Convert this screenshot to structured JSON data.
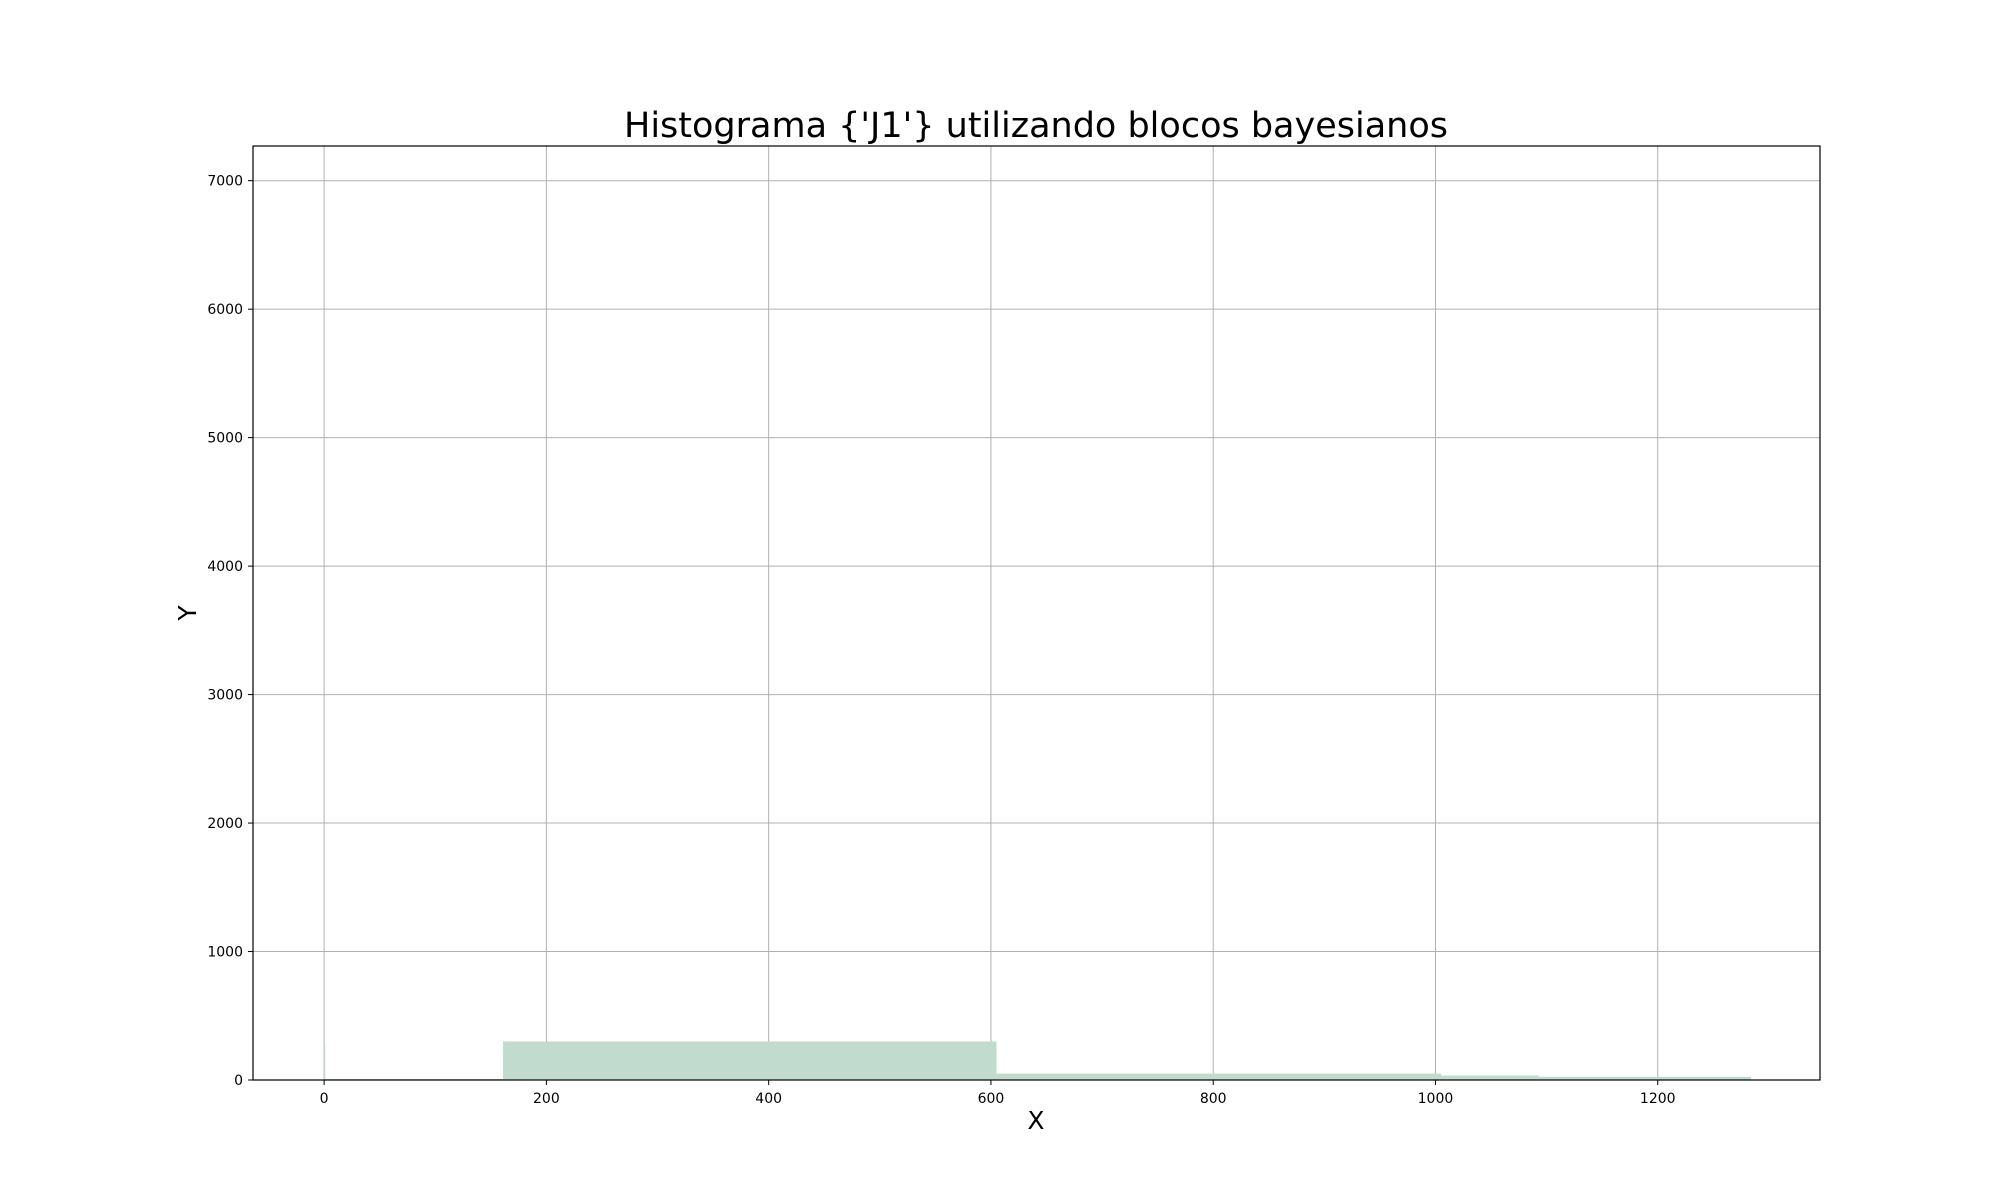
{
  "chart_data": {
    "type": "bar",
    "title": "Histograma {'J1'} utilizando blocos bayesianos",
    "xlabel": "X",
    "ylabel": "Y",
    "xlim": [
      -64,
      1346
    ],
    "ylim": [
      0,
      7270
    ],
    "xticks": [
      0,
      200,
      400,
      600,
      800,
      1000,
      1200
    ],
    "yticks": [
      0,
      1000,
      2000,
      3000,
      4000,
      5000,
      6000,
      7000
    ],
    "grid": true,
    "bar_color": "#c1dccf",
    "bins": [
      {
        "x0": 0,
        "x1": 1,
        "value": 280
      },
      {
        "x0": 1,
        "x1": 161,
        "value": 8
      },
      {
        "x0": 161,
        "x1": 605,
        "value": 300
      },
      {
        "x0": 605,
        "x1": 1005,
        "value": 50
      },
      {
        "x0": 1005,
        "x1": 1093,
        "value": 35
      },
      {
        "x0": 1093,
        "x1": 1284,
        "value": 25
      }
    ]
  }
}
